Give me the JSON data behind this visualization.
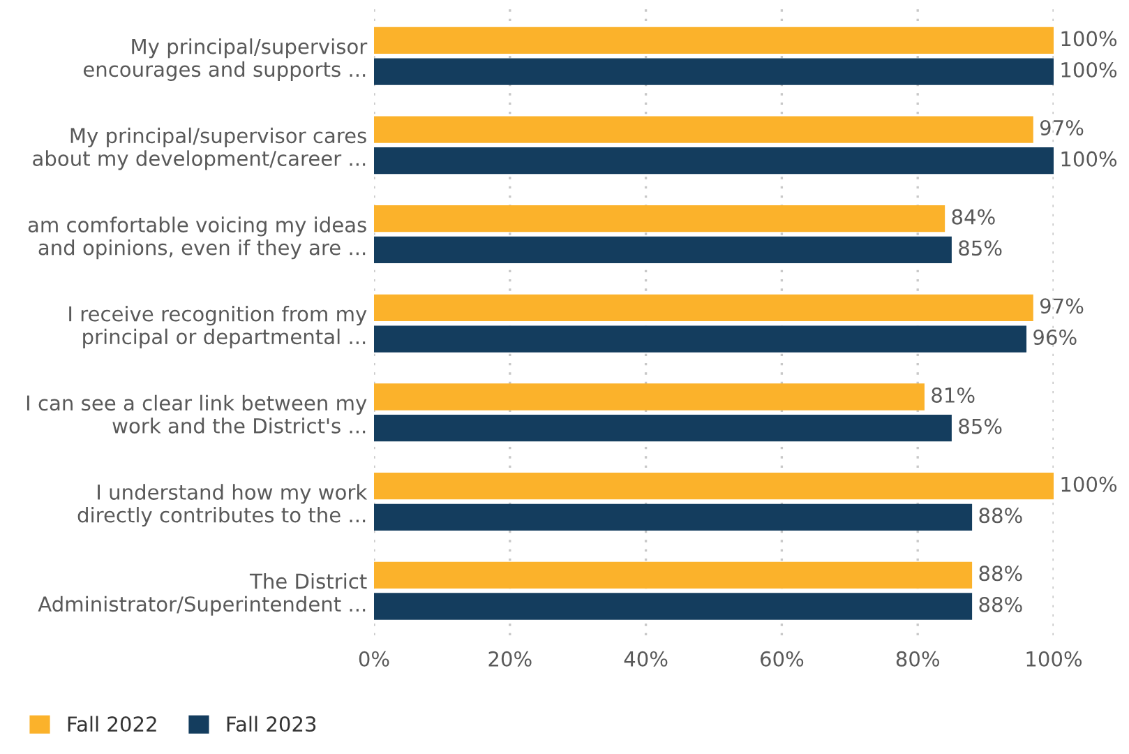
{
  "chart_data": {
    "type": "bar",
    "orientation": "horizontal",
    "categories": [
      "My principal/supervisor\nencourages and supports ...",
      "My principal/supervisor cares\nabout my development/career ...",
      "am comfortable voicing my ideas\nand opinions, even if they are ...",
      "I receive recognition from my\nprincipal or departmental ...",
      "I can see a clear link between my\nwork and the District's ...",
      "I understand how my work\ndirectly contributes to the ...",
      "The District\nAdministrator/Superintendent ..."
    ],
    "series": [
      {
        "name": "Fall 2022",
        "color": "#fbb22b",
        "values": [
          100,
          97,
          84,
          97,
          81,
          100,
          88
        ],
        "value_labels": [
          "100%",
          "97%",
          "84%",
          "97%",
          "81%",
          "100%",
          "88%"
        ]
      },
      {
        "name": "Fall 2023",
        "color": "#143d5e",
        "values": [
          100,
          100,
          85,
          96,
          85,
          88,
          88
        ],
        "value_labels": [
          "100%",
          "100%",
          "85%",
          "96%",
          "85%",
          "88%",
          "88%"
        ]
      }
    ],
    "xlim": [
      0,
      100
    ],
    "xticks": [
      {
        "value": 0,
        "label": "0%"
      },
      {
        "value": 20,
        "label": "20%"
      },
      {
        "value": 40,
        "label": "40%"
      },
      {
        "value": 60,
        "label": "60%"
      },
      {
        "value": 80,
        "label": "80%"
      },
      {
        "value": 100,
        "label": "100%"
      }
    ],
    "grid": "x",
    "legend": "bottom left"
  }
}
